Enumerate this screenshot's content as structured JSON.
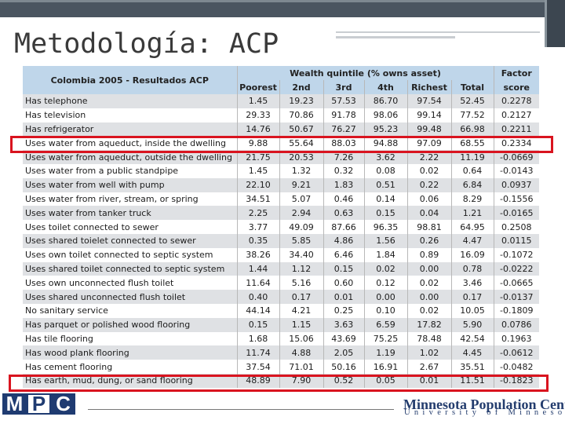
{
  "slide": {
    "title": "Metodología: ACP"
  },
  "table": {
    "corner_label": "Colombia 2005 - Resultados ACP",
    "group_header": "Wealth quintile (% owns asset)",
    "factor_header_1": "Factor",
    "factor_header_2": "score",
    "columns": [
      "Poorest",
      "2nd",
      "3rd",
      "4th",
      "Richest",
      "Total"
    ],
    "rows": [
      {
        "label": "Has telephone",
        "values": [
          "1.45",
          "19.23",
          "57.53",
          "86.70",
          "97.54",
          "52.45",
          "0.2278"
        ]
      },
      {
        "label": "Has television",
        "values": [
          "29.33",
          "70.86",
          "91.78",
          "98.06",
          "99.14",
          "77.52",
          "0.2127"
        ]
      },
      {
        "label": "Has refrigerator",
        "values": [
          "14.76",
          "50.67",
          "76.27",
          "95.23",
          "99.48",
          "66.98",
          "0.2211"
        ]
      },
      {
        "label": "Uses water from aqueduct, inside the dwelling",
        "values": [
          "9.88",
          "55.64",
          "88.03",
          "94.88",
          "97.09",
          "68.55",
          "0.2334"
        ]
      },
      {
        "label": "Uses water from aqueduct, outside the dwelling",
        "values": [
          "21.75",
          "20.53",
          "7.26",
          "3.62",
          "2.22",
          "11.19",
          "-0.0669"
        ]
      },
      {
        "label": "Uses water from a public standpipe",
        "values": [
          "1.45",
          "1.32",
          "0.32",
          "0.08",
          "0.02",
          "0.64",
          "-0.0143"
        ]
      },
      {
        "label": "Uses water from well with pump",
        "values": [
          "22.10",
          "9.21",
          "1.83",
          "0.51",
          "0.22",
          "6.84",
          "0.0937"
        ]
      },
      {
        "label": "Uses water from river, stream, or spring",
        "values": [
          "34.51",
          "5.07",
          "0.46",
          "0.14",
          "0.06",
          "8.29",
          "-0.1556"
        ]
      },
      {
        "label": "Uses water from tanker truck",
        "values": [
          "2.25",
          "2.94",
          "0.63",
          "0.15",
          "0.04",
          "1.21",
          "-0.0165"
        ]
      },
      {
        "label": "Uses toilet connected to sewer",
        "values": [
          "3.77",
          "49.09",
          "87.66",
          "96.35",
          "98.81",
          "64.95",
          "0.2508"
        ]
      },
      {
        "label": "Uses shared toielet connected to sewer",
        "values": [
          "0.35",
          "5.85",
          "4.86",
          "1.56",
          "0.26",
          "4.47",
          "0.0115"
        ]
      },
      {
        "label": "Uses own toilet connected to septic system",
        "values": [
          "38.26",
          "34.40",
          "6.46",
          "1.84",
          "0.89",
          "16.09",
          "-0.1072"
        ]
      },
      {
        "label": "Uses shared toilet connected to septic system",
        "values": [
          "1.44",
          "1.12",
          "0.15",
          "0.02",
          "0.00",
          "0.78",
          "-0.0222"
        ]
      },
      {
        "label": "Uses own unconnected flush toilet",
        "values": [
          "11.64",
          "5.16",
          "0.60",
          "0.12",
          "0.02",
          "3.46",
          "-0.0665"
        ]
      },
      {
        "label": "Uses shared unconnected flush toilet",
        "values": [
          "0.40",
          "0.17",
          "0.01",
          "0.00",
          "0.00",
          "0.17",
          "-0.0137"
        ]
      },
      {
        "label": "No sanitary service",
        "values": [
          "44.14",
          "4.21",
          "0.25",
          "0.10",
          "0.02",
          "10.05",
          "-0.1809"
        ]
      },
      {
        "label": "Has parquet or polished wood flooring",
        "values": [
          "0.15",
          "1.15",
          "3.63",
          "6.59",
          "17.82",
          "5.90",
          "0.0786"
        ]
      },
      {
        "label": "Has tile flooring",
        "values": [
          "1.68",
          "15.06",
          "43.69",
          "75.25",
          "78.48",
          "42.54",
          "0.1963"
        ]
      },
      {
        "label": "Has wood plank flooring",
        "values": [
          "11.74",
          "4.88",
          "2.05",
          "1.19",
          "1.02",
          "4.45",
          "-0.0612"
        ]
      },
      {
        "label": "Has cement flooring",
        "values": [
          "37.54",
          "71.01",
          "50.16",
          "16.91",
          "2.67",
          "35.51",
          "-0.0482"
        ]
      },
      {
        "label": "Has earth, mud, dung, or sand flooring",
        "values": [
          "48.89",
          "7.90",
          "0.52",
          "0.05",
          "0.01",
          "11.51",
          "-0.1823"
        ]
      }
    ]
  },
  "footer": {
    "logo_letters": [
      "M",
      "P",
      "C"
    ],
    "center_name": "Minnesota Population Center",
    "university": "University of Minnesota"
  },
  "colors": {
    "header_bg": "#bfd6ea",
    "stripe_bg": "#dfe1e4",
    "highlight": "#d9141f",
    "brand_navy": "#1f3b71"
  }
}
